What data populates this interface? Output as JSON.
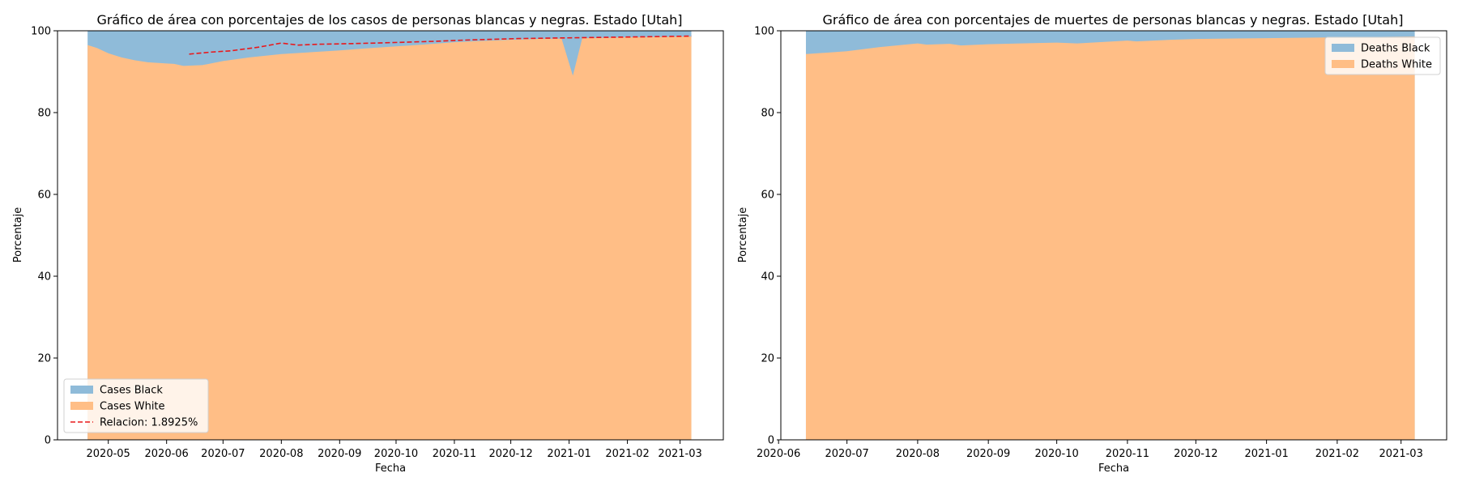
{
  "chart_data": [
    {
      "type": "area",
      "title": "Gráfico de área con porcentajes de los casos de personas blancas y negras. Estado [Utah]",
      "xlabel": "Fecha",
      "ylabel": "Porcentaje",
      "ylim": [
        0,
        100
      ],
      "xlim": [
        "2020-04-04",
        "2021-03-24"
      ],
      "yticks": [
        0,
        20,
        40,
        60,
        80,
        100
      ],
      "xticks": [
        "2020-05",
        "2020-06",
        "2020-07",
        "2020-08",
        "2020-09",
        "2020-10",
        "2020-11",
        "2020-12",
        "2021-01",
        "2021-02",
        "2021-03"
      ],
      "legend_position": "lower-left",
      "grid": false,
      "x": [
        "2020-04-20",
        "2020-04-25",
        "2020-05-01",
        "2020-05-08",
        "2020-05-15",
        "2020-05-22",
        "2020-06-01",
        "2020-06-05",
        "2020-06-10",
        "2020-06-20",
        "2020-07-01",
        "2020-07-15",
        "2020-08-01",
        "2020-08-15",
        "2020-09-01",
        "2020-09-15",
        "2020-10-01",
        "2020-10-15",
        "2020-11-01",
        "2020-11-15",
        "2020-12-01",
        "2020-12-15",
        "2020-12-28",
        "2021-01-03",
        "2021-01-08",
        "2021-01-20",
        "2021-02-01",
        "2021-02-15",
        "2021-03-07"
      ],
      "series": [
        {
          "name": "Cases White",
          "color": "#ffbe86",
          "values": [
            96.5,
            95.8,
            94.5,
            93.5,
            92.8,
            92.3,
            92.0,
            91.9,
            91.4,
            91.6,
            92.6,
            93.5,
            94.3,
            94.7,
            95.2,
            95.7,
            96.2,
            96.6,
            97.2,
            97.5,
            97.8,
            98.0,
            98.1,
            89.0,
            98.2,
            98.3,
            98.4,
            98.5,
            98.6
          ]
        },
        {
          "name": "Cases Black",
          "color": "#8fbbd9",
          "values": [
            3.5,
            4.2,
            5.5,
            6.5,
            7.2,
            7.7,
            8.0,
            8.1,
            8.6,
            8.4,
            7.4,
            6.5,
            5.7,
            5.3,
            4.8,
            4.3,
            3.8,
            3.4,
            2.8,
            2.5,
            2.2,
            2.0,
            1.9,
            11.0,
            1.8,
            1.7,
            1.6,
            1.5,
            1.4
          ]
        }
      ],
      "line": {
        "name": "Relacion: 1.8925%",
        "color": "#e8191c",
        "style": "dashed",
        "x": [
          "2020-06-13",
          "2020-06-25",
          "2020-07-05",
          "2020-07-20",
          "2020-08-01",
          "2020-08-10",
          "2020-08-20",
          "2020-09-01",
          "2020-09-20",
          "2020-10-05",
          "2020-10-20",
          "2020-11-05",
          "2020-11-20",
          "2020-12-05",
          "2020-12-20",
          "2021-01-05",
          "2021-01-20",
          "2021-02-05",
          "2021-02-20",
          "2021-03-07"
        ],
        "values": [
          94.3,
          94.8,
          95.1,
          96.0,
          97.0,
          96.5,
          96.7,
          96.8,
          97.0,
          97.2,
          97.4,
          97.7,
          97.9,
          98.1,
          98.2,
          98.3,
          98.4,
          98.5,
          98.6,
          98.7
        ]
      }
    },
    {
      "type": "area",
      "title": "Gráfico de área con porcentajes de muertes de personas blancas y negras. Estado [Utah]",
      "xlabel": "Fecha",
      "ylabel": "Porcentaje",
      "ylim": [
        0,
        100
      ],
      "xlim": [
        "2020-06-02",
        "2021-03-21"
      ],
      "yticks": [
        0,
        20,
        40,
        60,
        80,
        100
      ],
      "xticks": [
        "2020-06",
        "2020-07",
        "2020-08",
        "2020-09",
        "2020-10",
        "2020-11",
        "2020-12",
        "2021-01",
        "2021-02",
        "2021-03"
      ],
      "legend_position": "upper-right",
      "grid": false,
      "x": [
        "2020-06-13",
        "2020-07-01",
        "2020-07-15",
        "2020-08-01",
        "2020-08-05",
        "2020-08-15",
        "2020-08-20",
        "2020-09-01",
        "2020-09-15",
        "2020-10-01",
        "2020-10-10",
        "2020-11-01",
        "2020-11-05",
        "2020-11-20",
        "2020-12-01",
        "2020-12-15",
        "2021-01-01",
        "2021-01-15",
        "2021-02-01",
        "2021-02-15",
        "2021-03-07"
      ],
      "series": [
        {
          "name": "Deaths White",
          "color": "#ffbe86",
          "values": [
            94.3,
            95.0,
            96.0,
            96.9,
            96.6,
            96.8,
            96.4,
            96.7,
            96.9,
            97.1,
            96.9,
            97.6,
            97.4,
            97.8,
            98.0,
            98.1,
            98.2,
            98.3,
            98.4,
            98.5,
            98.6
          ]
        },
        {
          "name": "Deaths Black",
          "color": "#8fbbd9",
          "values": [
            5.7,
            5.0,
            4.0,
            3.1,
            3.4,
            3.2,
            3.6,
            3.3,
            3.1,
            2.9,
            3.1,
            2.4,
            2.6,
            2.2,
            2.0,
            1.9,
            1.8,
            1.7,
            1.6,
            1.5,
            1.4
          ]
        }
      ]
    }
  ]
}
